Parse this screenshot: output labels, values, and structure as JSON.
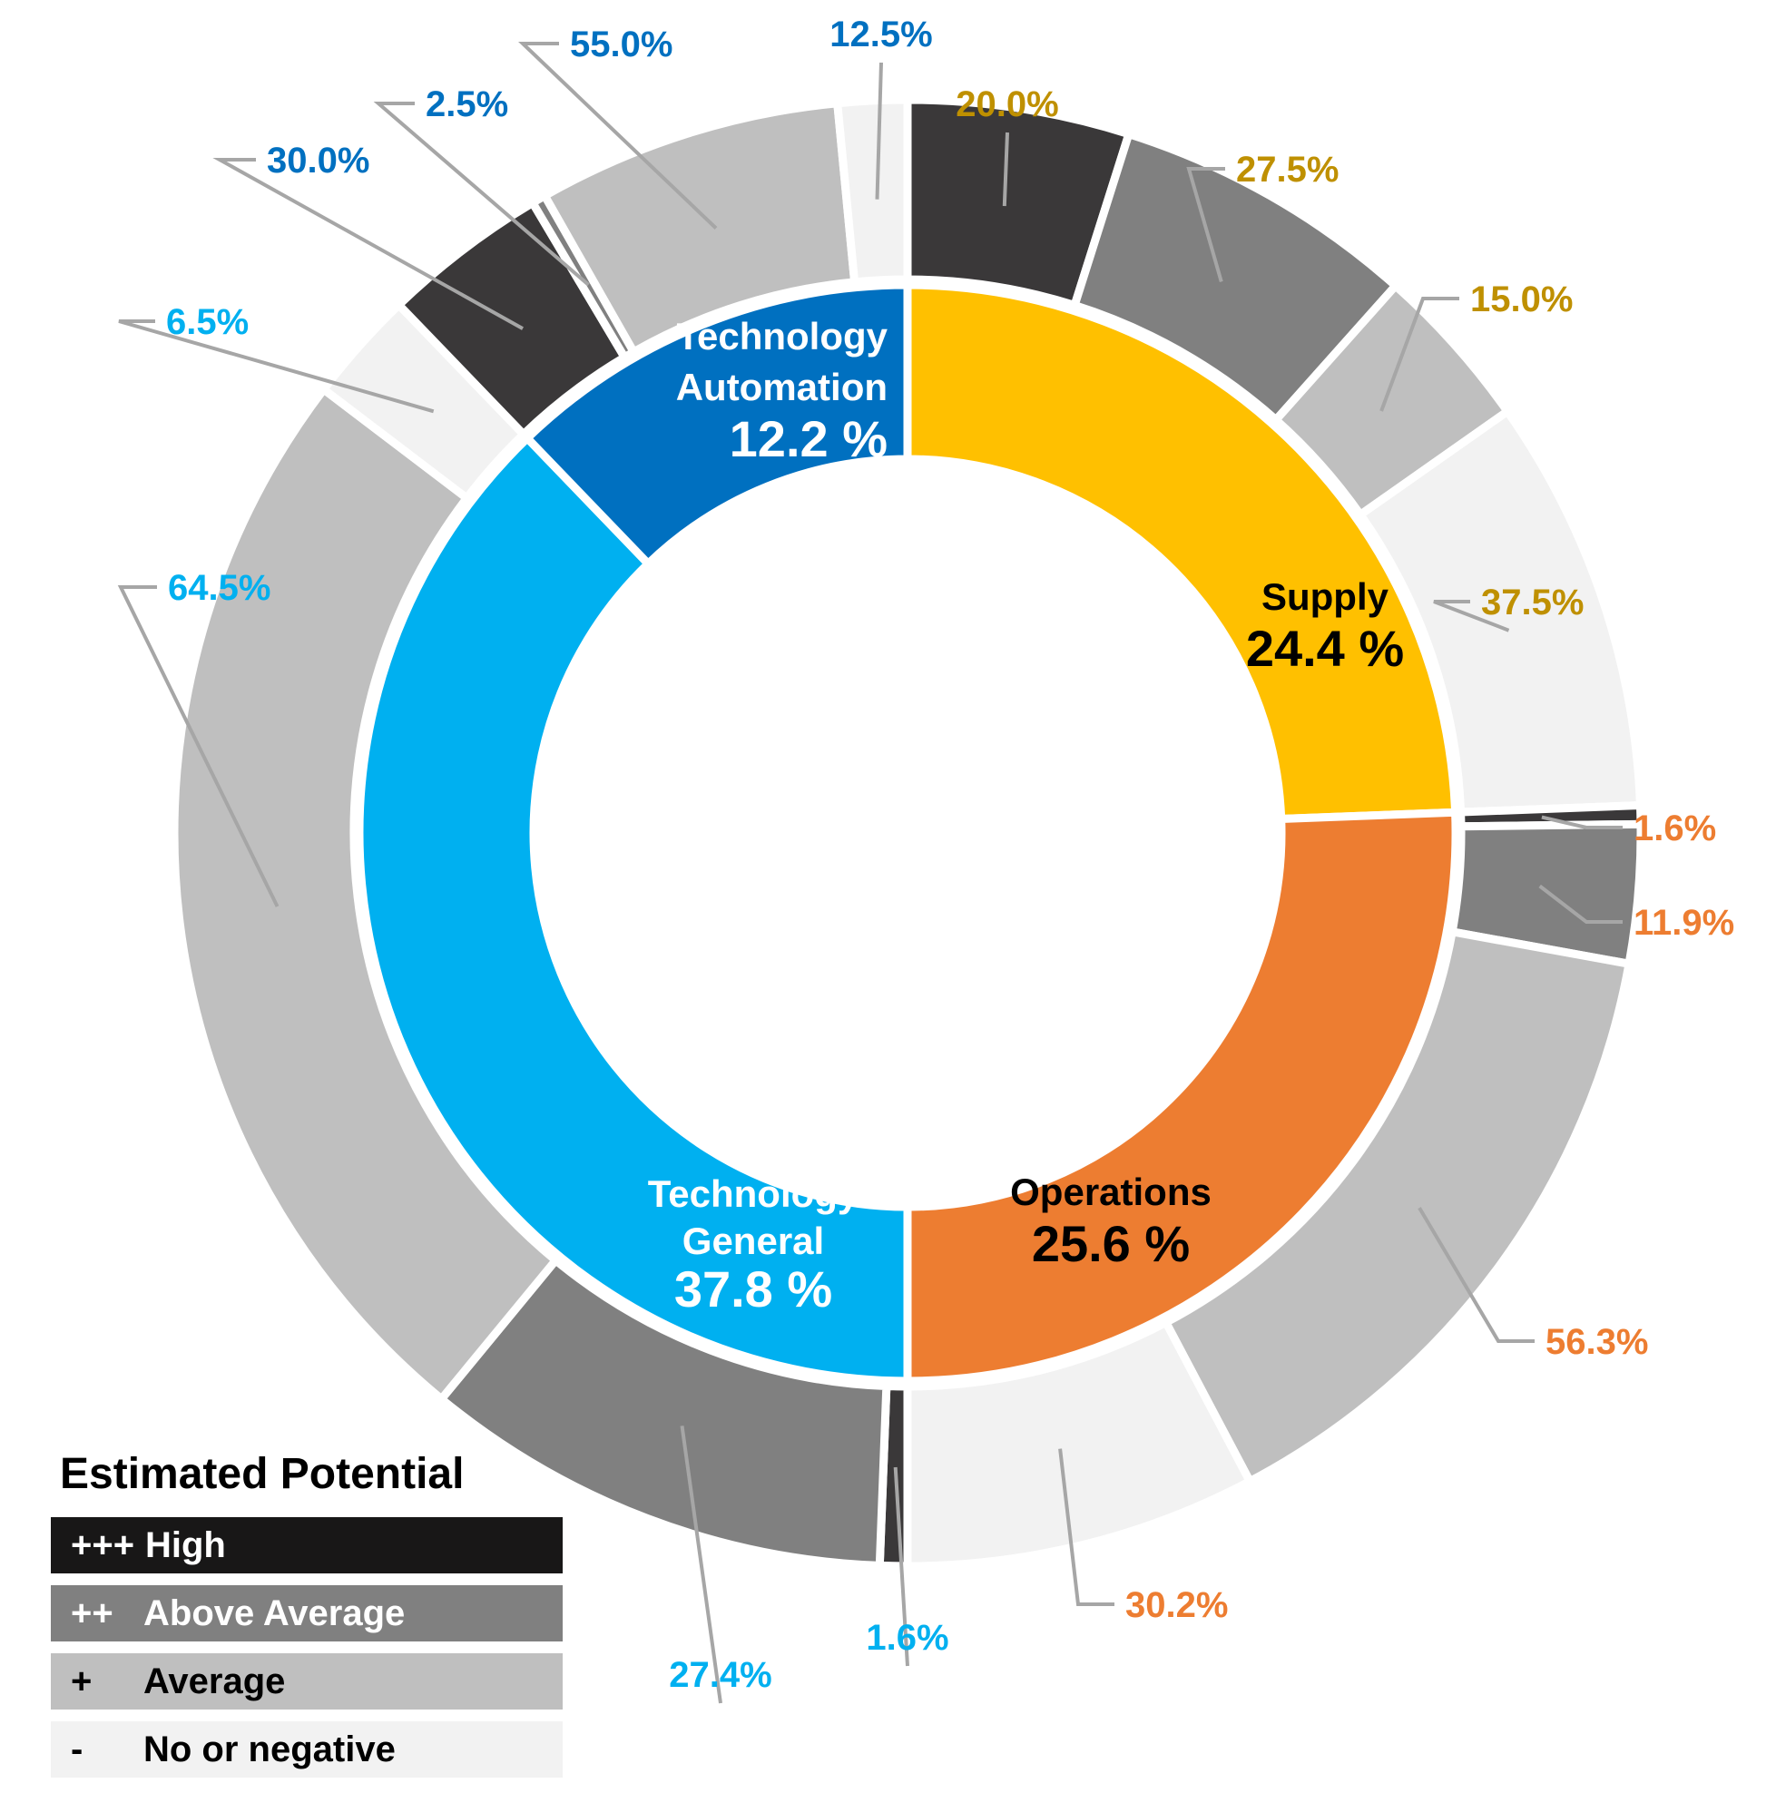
{
  "chart_data": {
    "type": "pie",
    "variant": "nested-donut",
    "title": "",
    "potential_colors": {
      "high": "#3a3839",
      "above_average": "#808080",
      "average": "#bfbfbf",
      "none_negative": "#f2f2f2"
    },
    "categories": [
      {
        "name_lines": [
          "Supply"
        ],
        "value_label": "24.4 %",
        "value": 24.4,
        "color": "#ffc000",
        "text_color": "#000000",
        "label_color": "#bf9000",
        "segments": [
          {
            "potential": "high",
            "value": 20.0,
            "label": "20.0%"
          },
          {
            "potential": "above_average",
            "value": 27.5,
            "label": "27.5%"
          },
          {
            "potential": "average",
            "value": 15.0,
            "label": "15.0%"
          },
          {
            "potential": "none_negative",
            "value": 37.5,
            "label": "37.5%"
          }
        ]
      },
      {
        "name_lines": [
          "Operations"
        ],
        "value_label": "25.6 %",
        "value": 25.6,
        "color": "#ed7d31",
        "text_color": "#000000",
        "label_color": "#ed7d31",
        "segments": [
          {
            "potential": "high",
            "value": 1.6,
            "label": "1.6%"
          },
          {
            "potential": "above_average",
            "value": 11.9,
            "label": "11.9%"
          },
          {
            "potential": "average",
            "value": 56.3,
            "label": "56.3%"
          },
          {
            "potential": "none_negative",
            "value": 30.2,
            "label": "30.2%"
          }
        ]
      },
      {
        "name_lines": [
          "Technology",
          "General"
        ],
        "value_label": "37.8 %",
        "value": 37.8,
        "color": "#00b0f0",
        "text_color": "#ffffff",
        "label_color": "#00b0f0",
        "segments": [
          {
            "potential": "high",
            "value": 1.6,
            "label": "1.6%"
          },
          {
            "potential": "above_average",
            "value": 27.4,
            "label": "27.4%"
          },
          {
            "potential": "average",
            "value": 64.5,
            "label": "64.5%"
          },
          {
            "potential": "none_negative",
            "value": 6.5,
            "label": "6.5%"
          }
        ]
      },
      {
        "name_lines": [
          "Technology",
          "Automation"
        ],
        "value_label": "12.2 %",
        "value": 12.2,
        "color": "#0070c0",
        "text_color": "#ffffff",
        "label_color": "#0070c0",
        "segments": [
          {
            "potential": "high",
            "value": 30.0,
            "label": "30.0%"
          },
          {
            "potential": "above_average",
            "value": 2.5,
            "label": "2.5%"
          },
          {
            "potential": "average",
            "value": 55.0,
            "label": "55.0%"
          },
          {
            "potential": "none_negative",
            "value": 12.5,
            "label": "12.5%"
          }
        ]
      }
    ],
    "legend": {
      "title": "Estimated Potential",
      "position": "bottom-left",
      "items": [
        {
          "symbol": "+++",
          "label": "High",
          "color": "#181717",
          "text_color": "#ffffff"
        },
        {
          "symbol": "++",
          "label": "Above Average",
          "color": "#808080",
          "text_color": "#ffffff"
        },
        {
          "symbol": "+",
          "label": "Average",
          "color": "#bfbfbf",
          "text_color": "#000000"
        },
        {
          "symbol": "-",
          "label": "No or negative",
          "color": "#f2f2f2",
          "text_color": "#000000"
        }
      ]
    }
  }
}
